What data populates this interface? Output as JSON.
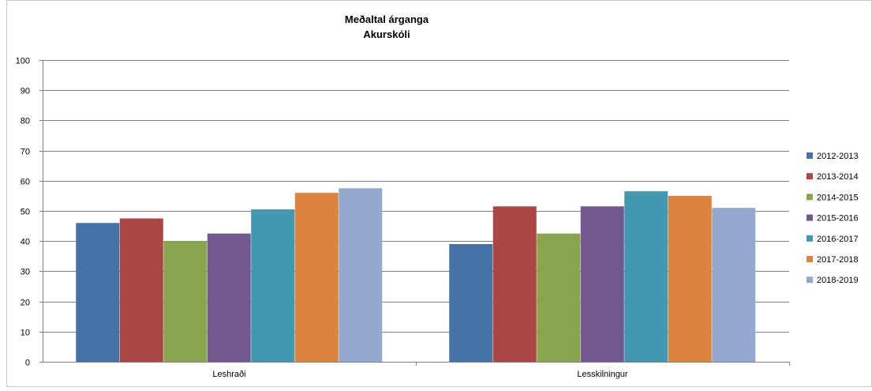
{
  "chart_data": {
    "type": "bar",
    "title": "Meðaltal árganga",
    "subtitle": "Akurskóli",
    "categories": [
      "Leshraði",
      "Lesskilningur"
    ],
    "series": [
      {
        "name": "2012-2013",
        "color": "#4572A7",
        "values": [
          46,
          39
        ]
      },
      {
        "name": "2013-2014",
        "color": "#AA4643",
        "values": [
          47.5,
          51.5
        ]
      },
      {
        "name": "2014-2015",
        "color": "#89A54E",
        "values": [
          40,
          42.5
        ]
      },
      {
        "name": "2015-2016",
        "color": "#71588F",
        "values": [
          42.5,
          51.5
        ]
      },
      {
        "name": "2016-2017",
        "color": "#4198AF",
        "values": [
          50.5,
          56.5
        ]
      },
      {
        "name": "2017-2018",
        "color": "#DB843D",
        "values": [
          56,
          55
        ]
      },
      {
        "name": "2018-2019",
        "color": "#93A9CF",
        "values": [
          57.5,
          51
        ]
      }
    ],
    "ylim": [
      0,
      100
    ],
    "yticks": [
      "0",
      "10",
      "20",
      "30",
      "40",
      "50",
      "60",
      "70",
      "80",
      "90",
      "100"
    ],
    "grid": true,
    "legend_position": "right"
  }
}
